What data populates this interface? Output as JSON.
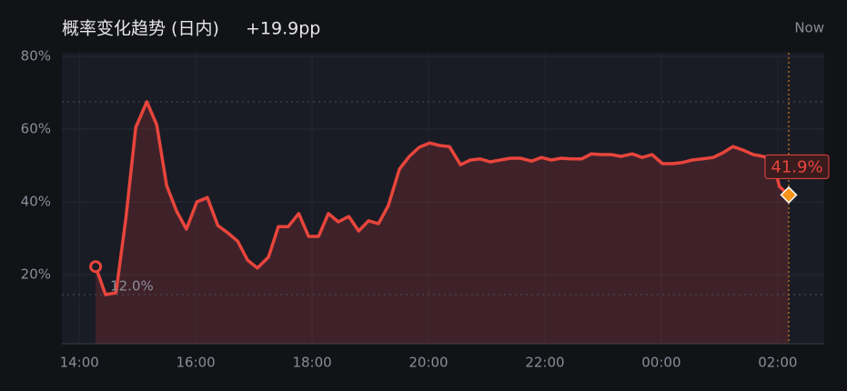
{
  "chart_data": {
    "type": "line",
    "title": "概率变化趋势 (日内)",
    "change": "+19.9pp",
    "now_label": "Now",
    "x": [
      14.28,
      14.45,
      14.63,
      14.8,
      14.97,
      15.16,
      15.33,
      15.5,
      15.67,
      15.84,
      16.02,
      16.2,
      16.38,
      16.55,
      16.72,
      16.89,
      17.06,
      17.25,
      17.42,
      17.59,
      17.77,
      17.94,
      18.11,
      18.28,
      18.45,
      18.63,
      18.8,
      18.97,
      19.14,
      19.31,
      19.5,
      19.67,
      19.84,
      20.02,
      20.19,
      20.36,
      20.55,
      20.72,
      20.89,
      21.06,
      21.23,
      21.41,
      21.58,
      21.77,
      21.94,
      22.11,
      22.28,
      22.45,
      22.63,
      22.8,
      22.97,
      23.14,
      23.31,
      23.5,
      23.67,
      23.84,
      24.02,
      24.19,
      24.36,
      24.53,
      24.7,
      24.89,
      25.06,
      25.23,
      25.41,
      25.58,
      25.75,
      25.92,
      26.03,
      26.19
    ],
    "series": [
      {
        "name": "概率",
        "color": "#e8453c",
        "values": [
          22.2,
          14.5,
          15,
          35.5,
          60.5,
          67.5,
          61.2,
          44.5,
          37.5,
          32.5,
          40,
          41.2,
          33.5,
          31.5,
          29.2,
          24,
          21.8,
          24.8,
          33.2,
          33.2,
          36.8,
          30.5,
          30.5,
          36.8,
          34.5,
          36,
          32,
          34.8,
          34,
          39,
          49,
          52.5,
          55,
          56.2,
          55.5,
          55.2,
          50.2,
          51.5,
          51.8,
          51,
          51.5,
          52,
          52,
          51.2,
          52.2,
          51.5,
          52,
          51.8,
          51.8,
          53.2,
          53,
          53,
          52.5,
          53.2,
          52.2,
          53,
          50.5,
          50.5,
          50.8,
          51.5,
          51.8,
          52.2,
          53.5,
          55.2,
          54.2,
          53,
          52.5,
          51.2,
          44.2,
          41.9
        ],
        "value_labels": [
          null,
          null,
          null,
          null,
          null,
          null,
          null,
          null,
          null,
          null,
          null,
          null,
          null,
          null,
          null,
          null,
          null,
          null,
          null,
          null,
          null,
          null,
          null,
          null,
          null,
          null,
          null,
          null,
          null,
          null,
          null,
          null,
          null,
          null,
          null,
          null,
          null,
          null,
          null,
          null,
          null,
          null,
          null,
          null,
          null,
          null,
          null,
          null,
          null,
          null,
          null,
          null,
          null,
          null,
          null,
          null,
          null,
          null,
          null,
          null,
          null,
          null,
          null,
          null,
          null,
          null,
          null,
          null,
          null,
          "41.9%"
        ]
      }
    ],
    "annotations": [
      {
        "text": "12.0%"
      }
    ],
    "xlim": [
      13.7,
      26.8
    ],
    "xticks": [
      {
        "value": 14,
        "label": "14:00"
      },
      {
        "value": 16,
        "label": "16:00"
      },
      {
        "value": 18,
        "label": "18:00"
      },
      {
        "value": 20,
        "label": "20:00"
      },
      {
        "value": 22,
        "label": "22:00"
      },
      {
        "value": 24,
        "label": "00:00"
      },
      {
        "value": 26,
        "label": "02:00"
      }
    ],
    "ylim": [
      0,
      80
    ],
    "yticks": [
      {
        "value": 20,
        "label": "20%"
      },
      {
        "value": 40,
        "label": "40%"
      },
      {
        "value": 60,
        "label": "60%"
      },
      {
        "value": 80,
        "label": "80%"
      }
    ],
    "grid": true,
    "now_color": "#f7931a"
  }
}
